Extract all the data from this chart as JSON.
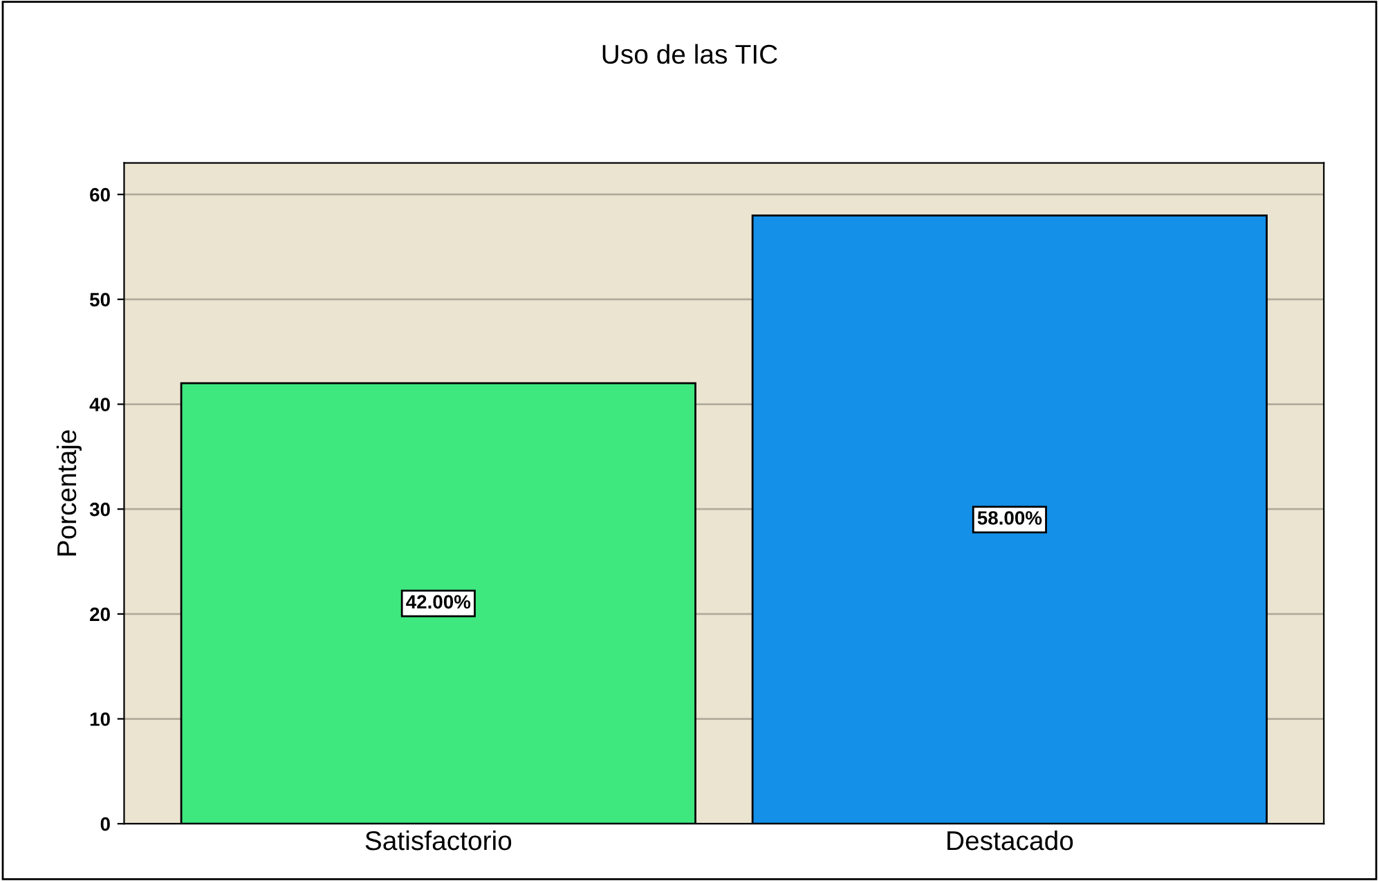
{
  "chart_data": {
    "type": "bar",
    "title": "Uso de las TIC",
    "ylabel": "Porcentaje",
    "categories": [
      "Satisfactorio",
      "Destacado"
    ],
    "values": [
      42,
      58
    ],
    "colors": [
      "#3fe87f",
      "#1490e8"
    ],
    "value_labels": [
      "42.00%",
      "58.00%"
    ],
    "ylim": [
      0,
      63
    ],
    "yticks": [
      0,
      10,
      20,
      30,
      40,
      50,
      60
    ],
    "grid": "y",
    "legend": false
  }
}
